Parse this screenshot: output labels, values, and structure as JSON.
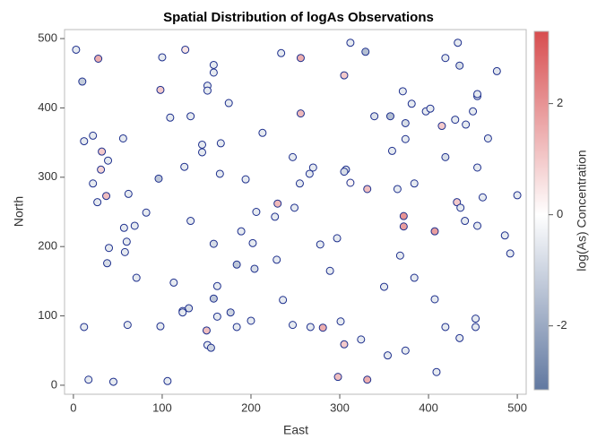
{
  "chart_data": {
    "type": "scatter",
    "title": "Spatial Distribution of logAs Observations",
    "x_label": "East",
    "y_label": "North",
    "colorbar_label": "log(As) Concentration",
    "xlim": [
      -10,
      510
    ],
    "ylim": [
      -13,
      513
    ],
    "xticks": [
      0,
      100,
      200,
      300,
      400,
      500
    ],
    "yticks": [
      0,
      100,
      200,
      300,
      400,
      500
    ],
    "clim": [
      -3.15,
      3.3
    ],
    "cticks": [
      -2,
      0,
      2
    ],
    "colormap": [
      "#6178a0",
      "#ffffff",
      "#d74d4f"
    ],
    "edge_color": "#1c2e8c",
    "x": [
      3,
      10,
      28,
      100,
      126,
      158,
      158,
      151,
      151,
      98,
      234,
      256,
      312,
      329,
      419,
      433,
      435,
      477,
      305,
      371,
      381,
      397,
      402,
      455,
      455,
      450,
      430,
      415,
      442,
      374,
      357,
      339,
      175,
      256,
      109,
      132,
      22,
      12,
      56,
      32,
      39,
      31,
      22,
      27,
      37,
      62,
      145,
      145,
      166,
      213,
      125,
      96,
      165,
      194,
      247,
      270,
      266,
      307,
      305,
      312,
      255,
      331,
      365,
      384,
      359,
      374,
      419,
      455,
      467,
      432,
      436,
      461,
      500,
      455,
      441,
      486,
      492,
      372,
      372,
      407,
      368,
      384,
      350,
      407,
      419,
      453,
      453,
      435,
      374,
      354,
      409,
      324,
      305,
      301,
      297,
      278,
      289,
      267,
      281,
      247,
      236,
      229,
      227,
      230,
      249,
      206,
      202,
      189,
      158,
      184,
      204,
      200,
      184,
      162,
      177,
      162,
      158,
      130,
      123,
      123,
      113,
      150,
      151,
      155,
      98,
      106,
      132,
      57,
      60,
      58,
      40,
      38,
      82,
      69,
      71,
      61,
      12,
      17,
      45,
      298,
      331
    ],
    "y": [
      484,
      438,
      471,
      473,
      484,
      462,
      451,
      432,
      425,
      426,
      479,
      472,
      494,
      481,
      472,
      494,
      461,
      453,
      447,
      424,
      406,
      395,
      399,
      417,
      420,
      395,
      383,
      374,
      376,
      378,
      388,
      388,
      407,
      392,
      386,
      388,
      360,
      352,
      356,
      337,
      324,
      311,
      291,
      264,
      273,
      276,
      347,
      336,
      349,
      364,
      315,
      298,
      305,
      297,
      329,
      314,
      305,
      311,
      308,
      292,
      291,
      283,
      283,
      291,
      338,
      355,
      329,
      314,
      356,
      264,
      256,
      271,
      274,
      230,
      237,
      216,
      190,
      244,
      229,
      222,
      187,
      155,
      142,
      124,
      84,
      96,
      84,
      68,
      50,
      43,
      19,
      66,
      59,
      92,
      212,
      203,
      165,
      84,
      83,
      87,
      123,
      181,
      243,
      262,
      256,
      250,
      205,
      222,
      204,
      174,
      168,
      93,
      84,
      99,
      105,
      143,
      125,
      111,
      107,
      105,
      148,
      79,
      58,
      54,
      85,
      6,
      237,
      227,
      207,
      192,
      198,
      176,
      249,
      230,
      155,
      87,
      84,
      8,
      5,
      12,
      8
    ],
    "values": [
      -0.5,
      -1.2,
      1.5,
      -0.5,
      0.5,
      -0.5,
      -0.5,
      -0.5,
      -0.5,
      1.0,
      -0.5,
      1.5,
      -0.5,
      -1.5,
      -0.5,
      -0.5,
      -0.8,
      -0.6,
      1.0,
      -0.5,
      -0.5,
      -0.5,
      -0.5,
      -0.5,
      -0.5,
      -0.5,
      -0.5,
      1.0,
      -0.5,
      -0.8,
      -1.5,
      -0.7,
      -0.5,
      1.3,
      -0.5,
      -0.5,
      -0.5,
      -0.5,
      -0.5,
      1.0,
      -0.5,
      0.8,
      -0.5,
      -0.5,
      1.2,
      -0.5,
      -0.5,
      -0.5,
      -0.5,
      -0.5,
      -0.5,
      -1.3,
      -0.5,
      -0.5,
      -0.5,
      -0.5,
      -0.5,
      -0.8,
      -0.8,
      0.2,
      -0.5,
      1.2,
      -0.5,
      -0.5,
      -0.5,
      -0.5,
      -0.8,
      -0.5,
      -0.5,
      1.0,
      -0.5,
      -0.5,
      -0.5,
      -0.5,
      -0.5,
      -0.5,
      -0.5,
      2.0,
      1.8,
      1.8,
      -0.5,
      -0.5,
      -0.5,
      -0.5,
      -0.5,
      -0.5,
      -0.5,
      -0.5,
      -0.5,
      -0.5,
      -0.5,
      -0.5,
      1.0,
      -0.5,
      -0.5,
      -0.5,
      -0.5,
      -0.5,
      1.5,
      -0.5,
      -0.5,
      -0.5,
      -0.5,
      1.3,
      -0.5,
      -0.5,
      -0.5,
      -0.5,
      -0.8,
      -1.3,
      -0.8,
      -0.5,
      -0.5,
      -0.5,
      -1.0,
      -0.5,
      -1.3,
      -0.8,
      -0.5,
      -0.5,
      -0.5,
      1.2,
      -0.5,
      -1.0,
      -0.5,
      -0.5,
      -0.5,
      -0.5,
      -0.5,
      -0.5,
      -0.5,
      -0.8,
      -0.5,
      -0.5,
      -0.5,
      -0.5,
      -0.5,
      -0.5,
      -0.5,
      1.2,
      1.5
    ]
  }
}
